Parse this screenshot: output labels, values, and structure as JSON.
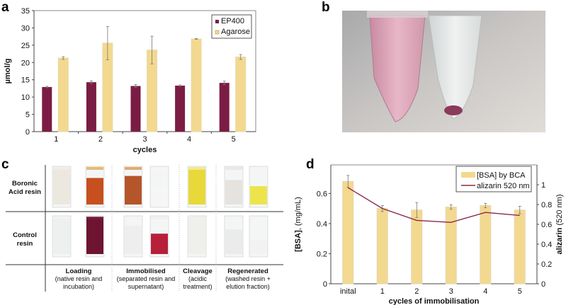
{
  "panels": {
    "a": "a",
    "b": "b",
    "c": "c",
    "d": "d"
  },
  "chart_data": [
    {
      "panel": "a",
      "type": "bar",
      "title": "",
      "xlabel": "cycles",
      "ylabel": "µmol/g",
      "categories": [
        "1",
        "2",
        "3",
        "4",
        "5"
      ],
      "ylim": [
        0,
        35
      ],
      "yticks": [
        "0",
        "5",
        "10",
        "15",
        "20",
        "25",
        "30",
        "35"
      ],
      "legend_position": "top-right",
      "series": [
        {
          "name": "EP400",
          "color": "#7b1c44",
          "values": [
            12.9,
            14.3,
            13.2,
            13.3,
            14.1
          ],
          "errors": [
            0.2,
            0.4,
            0.4,
            0.2,
            0.5
          ]
        },
        {
          "name": "Agarose",
          "color": "#f3d98f",
          "values": [
            21.3,
            25.6,
            23.6,
            26.8,
            21.6
          ],
          "errors": [
            0.4,
            4.8,
            4.0,
            0.1,
            0.7
          ]
        }
      ]
    },
    {
      "panel": "d",
      "type": "bar",
      "title": "",
      "xlabel": "cycles of immobilisation",
      "ylabel_bold": "[BSA]",
      "ylabel_rest": ", (mg/mL)",
      "y2label_bold": "alizarin",
      "y2label_rest": " (520 nm)",
      "categories": [
        "inital",
        "1",
        "2",
        "3",
        "4",
        "5"
      ],
      "ylim": [
        0,
        0.79
      ],
      "yticks": [
        "0",
        "0.2",
        "0.4",
        "0.6"
      ],
      "y2lim": [
        0,
        1.2
      ],
      "y2ticks": [
        "0",
        "0.2",
        "0.4",
        "0.6",
        "0.8",
        "1"
      ],
      "legend_position": "top-right",
      "series": [
        {
          "name": "[BSA] by BCA",
          "type": "bar",
          "axis": "left",
          "color": "#f3d98f",
          "values": [
            0.68,
            0.5,
            0.49,
            0.51,
            0.52,
            0.49
          ],
          "errors": [
            0.04,
            0.02,
            0.05,
            0.015,
            0.015,
            0.025
          ]
        },
        {
          "name": "alizarin 520 nm",
          "type": "line",
          "axis": "right",
          "color": "#8b2a4a",
          "values": [
            0.97,
            0.76,
            0.64,
            0.62,
            0.72,
            0.69
          ]
        }
      ]
    }
  ],
  "panel_c": {
    "rows": [
      "Boronic\nAcid resin",
      "Control\nresin"
    ],
    "columns": [
      {
        "title": "Loading",
        "sub1": "(native resin and",
        "sub2": "incubation)"
      },
      {
        "title": "Immobilised",
        "sub1": "(separated resin and",
        "sub2": "supernatant)"
      },
      {
        "title": "Cleavage",
        "sub1": "(acidic",
        "sub2": "treatment)"
      },
      {
        "title": "Regenerated",
        "sub1": "(washed resin +",
        "sub2": "elution fraction)"
      }
    ]
  }
}
